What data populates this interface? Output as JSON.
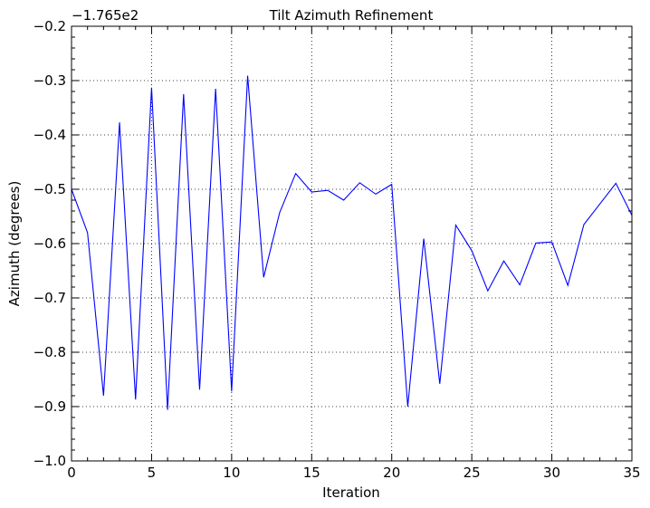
{
  "chart_data": {
    "type": "line",
    "title": "Tilt Azimuth Refinement",
    "xlabel": "Iteration",
    "ylabel": "Azimuth (degrees)",
    "y_offset_label": "−1.765e2",
    "xlim": [
      0,
      35
    ],
    "ylim": [
      -1.0,
      -0.2
    ],
    "xticks": [
      0,
      5,
      10,
      15,
      20,
      25,
      30,
      35
    ],
    "xtick_labels": [
      "0",
      "5",
      "10",
      "15",
      "20",
      "25",
      "30",
      "35"
    ],
    "yticks": [
      -1.0,
      -0.9,
      -0.8,
      -0.7,
      -0.6,
      -0.5,
      -0.4,
      -0.3,
      -0.2
    ],
    "ytick_labels": [
      "−1.0",
      "−0.9",
      "−0.8",
      "−0.7",
      "−0.6",
      "−0.5",
      "−0.4",
      "−0.3",
      "−0.2"
    ],
    "grid": true,
    "series": [
      {
        "color": "#0000ff",
        "x": [
          0,
          1,
          2,
          3,
          4,
          5,
          6,
          7,
          8,
          9,
          10,
          11,
          12,
          13,
          14,
          15,
          16,
          17,
          18,
          19,
          20,
          21,
          22,
          23,
          24,
          25,
          26,
          27,
          28,
          29,
          30,
          31,
          32,
          33,
          34,
          35
        ],
        "y": [
          -0.5,
          -0.58,
          -0.88,
          -0.377,
          -0.887,
          -0.313,
          -0.906,
          -0.325,
          -0.869,
          -0.315,
          -0.872,
          -0.291,
          -0.662,
          -0.543,
          -0.471,
          -0.505,
          -0.502,
          -0.52,
          -0.488,
          -0.509,
          -0.491,
          -0.9,
          -0.591,
          -0.858,
          -0.566,
          -0.613,
          -0.687,
          -0.632,
          -0.676,
          -0.599,
          -0.597,
          -0.677,
          -0.565,
          -0.527,
          -0.489,
          -0.548
        ]
      }
    ]
  }
}
